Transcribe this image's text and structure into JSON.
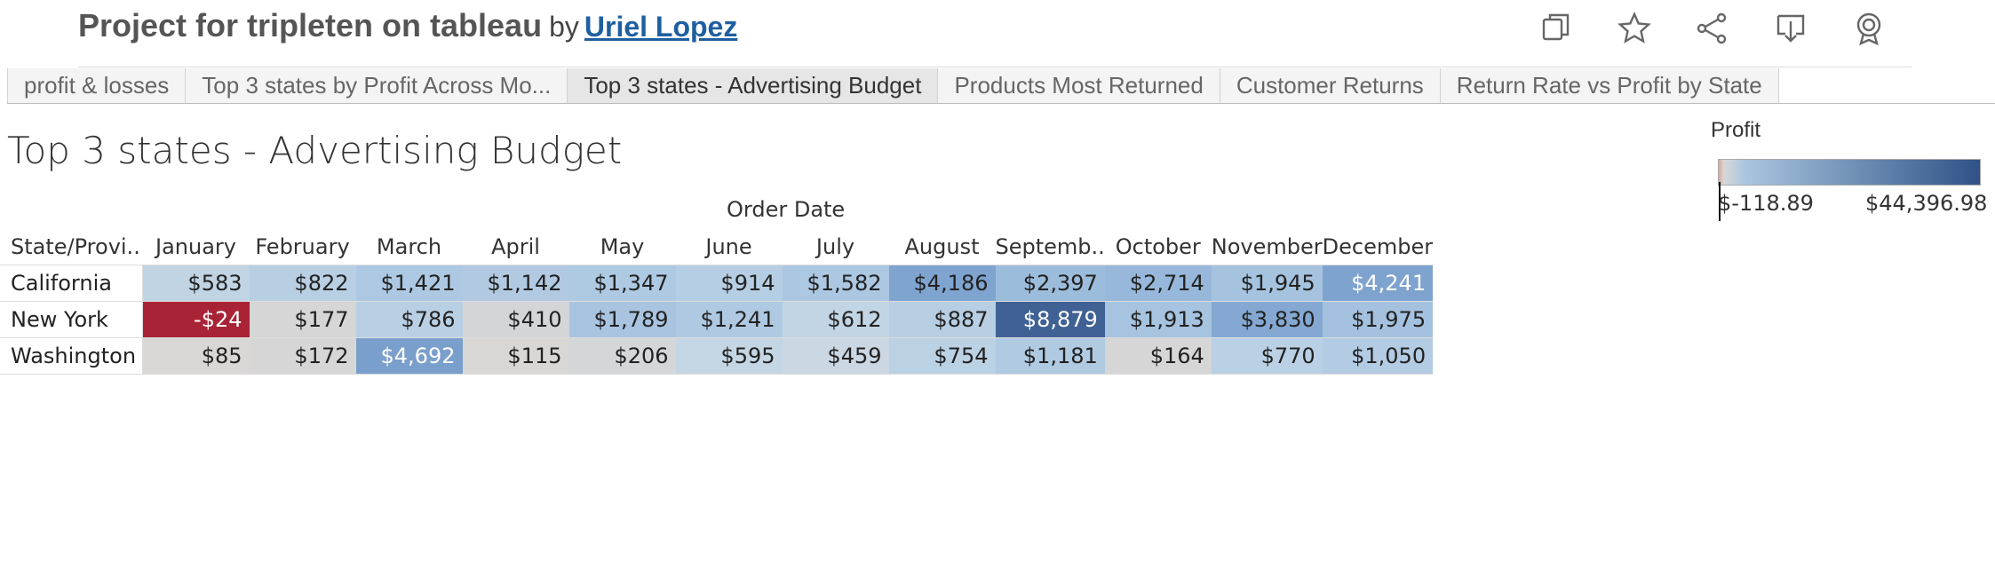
{
  "header": {
    "title": "Project for tripleten on tableau",
    "by": "by",
    "author": "Uriel Lopez",
    "icons": [
      "duplicate-icon",
      "star-icon",
      "share-icon",
      "download-icon",
      "badge-icon"
    ]
  },
  "tabs": [
    {
      "label": "profit & losses"
    },
    {
      "label": "Top 3 states by Profit Across Mo..."
    },
    {
      "label": "Top 3 states - Advertising Budget",
      "active": true
    },
    {
      "label": "Products Most Returned"
    },
    {
      "label": "Customer Returns"
    },
    {
      "label": "Return Rate vs Profit by State"
    }
  ],
  "sheet": {
    "title": "Top 3 states - Advertising Budget",
    "column_group_label": "Order Date",
    "row_header": "State/Provi..",
    "months": [
      "January",
      "February",
      "March",
      "April",
      "May",
      "June",
      "July",
      "August",
      "Septemb..",
      "October",
      "November",
      "December"
    ],
    "rows": [
      {
        "state": "California",
        "cells": [
          {
            "text": "$583",
            "value": 583,
            "bg": "#c0d4e4",
            "fg": "#222"
          },
          {
            "text": "$822",
            "value": 822,
            "bg": "#b8cfe3",
            "fg": "#222"
          },
          {
            "text": "$1,421",
            "value": 1421,
            "bg": "#adc8e2",
            "fg": "#222"
          },
          {
            "text": "$1,142",
            "value": 1142,
            "bg": "#b1cae2",
            "fg": "#222"
          },
          {
            "text": "$1,347",
            "value": 1347,
            "bg": "#aec9e2",
            "fg": "#222"
          },
          {
            "text": "$914",
            "value": 914,
            "bg": "#b6cee3",
            "fg": "#222"
          },
          {
            "text": "$1,582",
            "value": 1582,
            "bg": "#abc7e2",
            "fg": "#222"
          },
          {
            "text": "$4,186",
            "value": 4186,
            "bg": "#7fa4cf",
            "fg": "#222"
          },
          {
            "text": "$2,397",
            "value": 2397,
            "bg": "#9cbcdc",
            "fg": "#222"
          },
          {
            "text": "$2,714",
            "value": 2714,
            "bg": "#97b8da",
            "fg": "#222"
          },
          {
            "text": "$1,945",
            "value": 1945,
            "bg": "#a5c2df",
            "fg": "#222"
          },
          {
            "text": "$4,241",
            "value": 4241,
            "bg": "#7ea3ce",
            "fg": "#ffffff"
          }
        ]
      },
      {
        "state": "New York",
        "cells": [
          {
            "text": "-$24",
            "value": -24,
            "bg": "#a92337",
            "fg": "#ffffff"
          },
          {
            "text": "$177",
            "value": 177,
            "bg": "#d6d6d6",
            "fg": "#222"
          },
          {
            "text": "$786",
            "value": 786,
            "bg": "#b9d0e4",
            "fg": "#222"
          },
          {
            "text": "$410",
            "value": 410,
            "bg": "#d3d5d7",
            "fg": "#222"
          },
          {
            "text": "$1,789",
            "value": 1789,
            "bg": "#a8c4e0",
            "fg": "#222"
          },
          {
            "text": "$1,241",
            "value": 1241,
            "bg": "#afc9e2",
            "fg": "#222"
          },
          {
            "text": "$612",
            "value": 612,
            "bg": "#c2d5e4",
            "fg": "#222"
          },
          {
            "text": "$887",
            "value": 887,
            "bg": "#b7cee3",
            "fg": "#222"
          },
          {
            "text": "$8,879",
            "value": 8879,
            "bg": "#3f6194",
            "fg": "#ffffff"
          },
          {
            "text": "$1,913",
            "value": 1913,
            "bg": "#a6c3df",
            "fg": "#222"
          },
          {
            "text": "$3,830",
            "value": 3830,
            "bg": "#84a8d1",
            "fg": "#222"
          },
          {
            "text": "$1,975",
            "value": 1975,
            "bg": "#a4c1df",
            "fg": "#222"
          }
        ]
      },
      {
        "state": "Washington",
        "cells": [
          {
            "text": "$85",
            "value": 85,
            "bg": "#d9d7d6",
            "fg": "#222"
          },
          {
            "text": "$172",
            "value": 172,
            "bg": "#d6d6d6",
            "fg": "#222"
          },
          {
            "text": "$4,692",
            "value": 4692,
            "bg": "#7a9fcc",
            "fg": "#ffffff"
          },
          {
            "text": "$115",
            "value": 115,
            "bg": "#d8d7d6",
            "fg": "#222"
          },
          {
            "text": "$206",
            "value": 206,
            "bg": "#d5d6d7",
            "fg": "#222"
          },
          {
            "text": "$595",
            "value": 595,
            "bg": "#c4d6e4",
            "fg": "#222"
          },
          {
            "text": "$459",
            "value": 459,
            "bg": "#cbd7e3",
            "fg": "#222"
          },
          {
            "text": "$754",
            "value": 754,
            "bg": "#bbd1e4",
            "fg": "#222"
          },
          {
            "text": "$1,181",
            "value": 1181,
            "bg": "#b0cae2",
            "fg": "#222"
          },
          {
            "text": "$164",
            "value": 164,
            "bg": "#d6d6d6",
            "fg": "#222"
          },
          {
            "text": "$770",
            "value": 770,
            "bg": "#bad0e4",
            "fg": "#222"
          },
          {
            "text": "$1,050",
            "value": 1050,
            "bg": "#b3cbe3",
            "fg": "#222"
          }
        ]
      }
    ]
  },
  "legend": {
    "title": "Profit",
    "min": "$-118.89",
    "max": "$44,396.98",
    "colors": [
      "#d9a8a0",
      "#d8d8d8",
      "#a9c6e0",
      "#2f5286"
    ]
  }
}
